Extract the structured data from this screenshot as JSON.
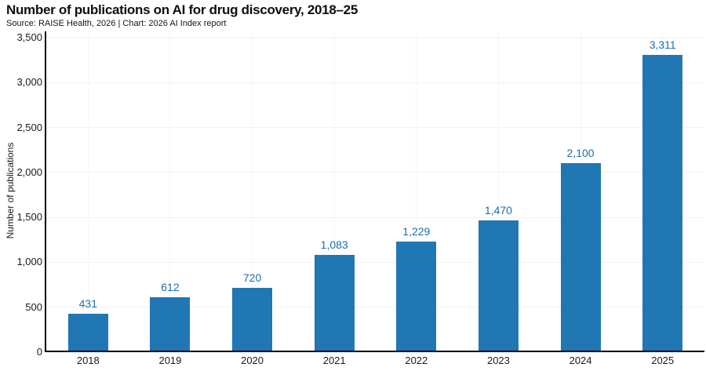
{
  "header": {
    "title": "Number of publications on AI for drug discovery, 2018–25",
    "subtitle": "Source: RAISE Health, 2026 | Chart: 2026 AI Index report"
  },
  "chart_data": {
    "type": "bar",
    "title": "Number of publications on AI for drug discovery, 2018–25",
    "subtitle": "Source: RAISE Health, 2026 | Chart: 2026 AI Index report",
    "categories": [
      "2018",
      "2019",
      "2020",
      "2021",
      "2022",
      "2023",
      "2024",
      "2025"
    ],
    "values": [
      431,
      612,
      720,
      1083,
      1229,
      1470,
      2100,
      3311
    ],
    "value_labels": [
      "431",
      "612",
      "720",
      "1,083",
      "1,229",
      "1,470",
      "2,100",
      "3,311"
    ],
    "xlabel": "",
    "ylabel": "Number of publications",
    "ylim": [
      0,
      3500
    ],
    "ytick_step": 500,
    "ytick_values": [
      0,
      500,
      1000,
      1500,
      2000,
      2500,
      3000,
      3500
    ],
    "ytick_labels": [
      "0",
      "500",
      "1,000",
      "1,500",
      "2,000",
      "2,500",
      "3,000",
      "3,500"
    ],
    "grid": true,
    "legend": "none",
    "colors": {
      "bar": "#2077b4",
      "value_label": "#1c6db3",
      "axis_line": "#000000",
      "grid_h": "#f2f2f2",
      "grid_v": "#f6f6f6",
      "text": "#1a1a1a",
      "background": "#ffffff"
    }
  }
}
